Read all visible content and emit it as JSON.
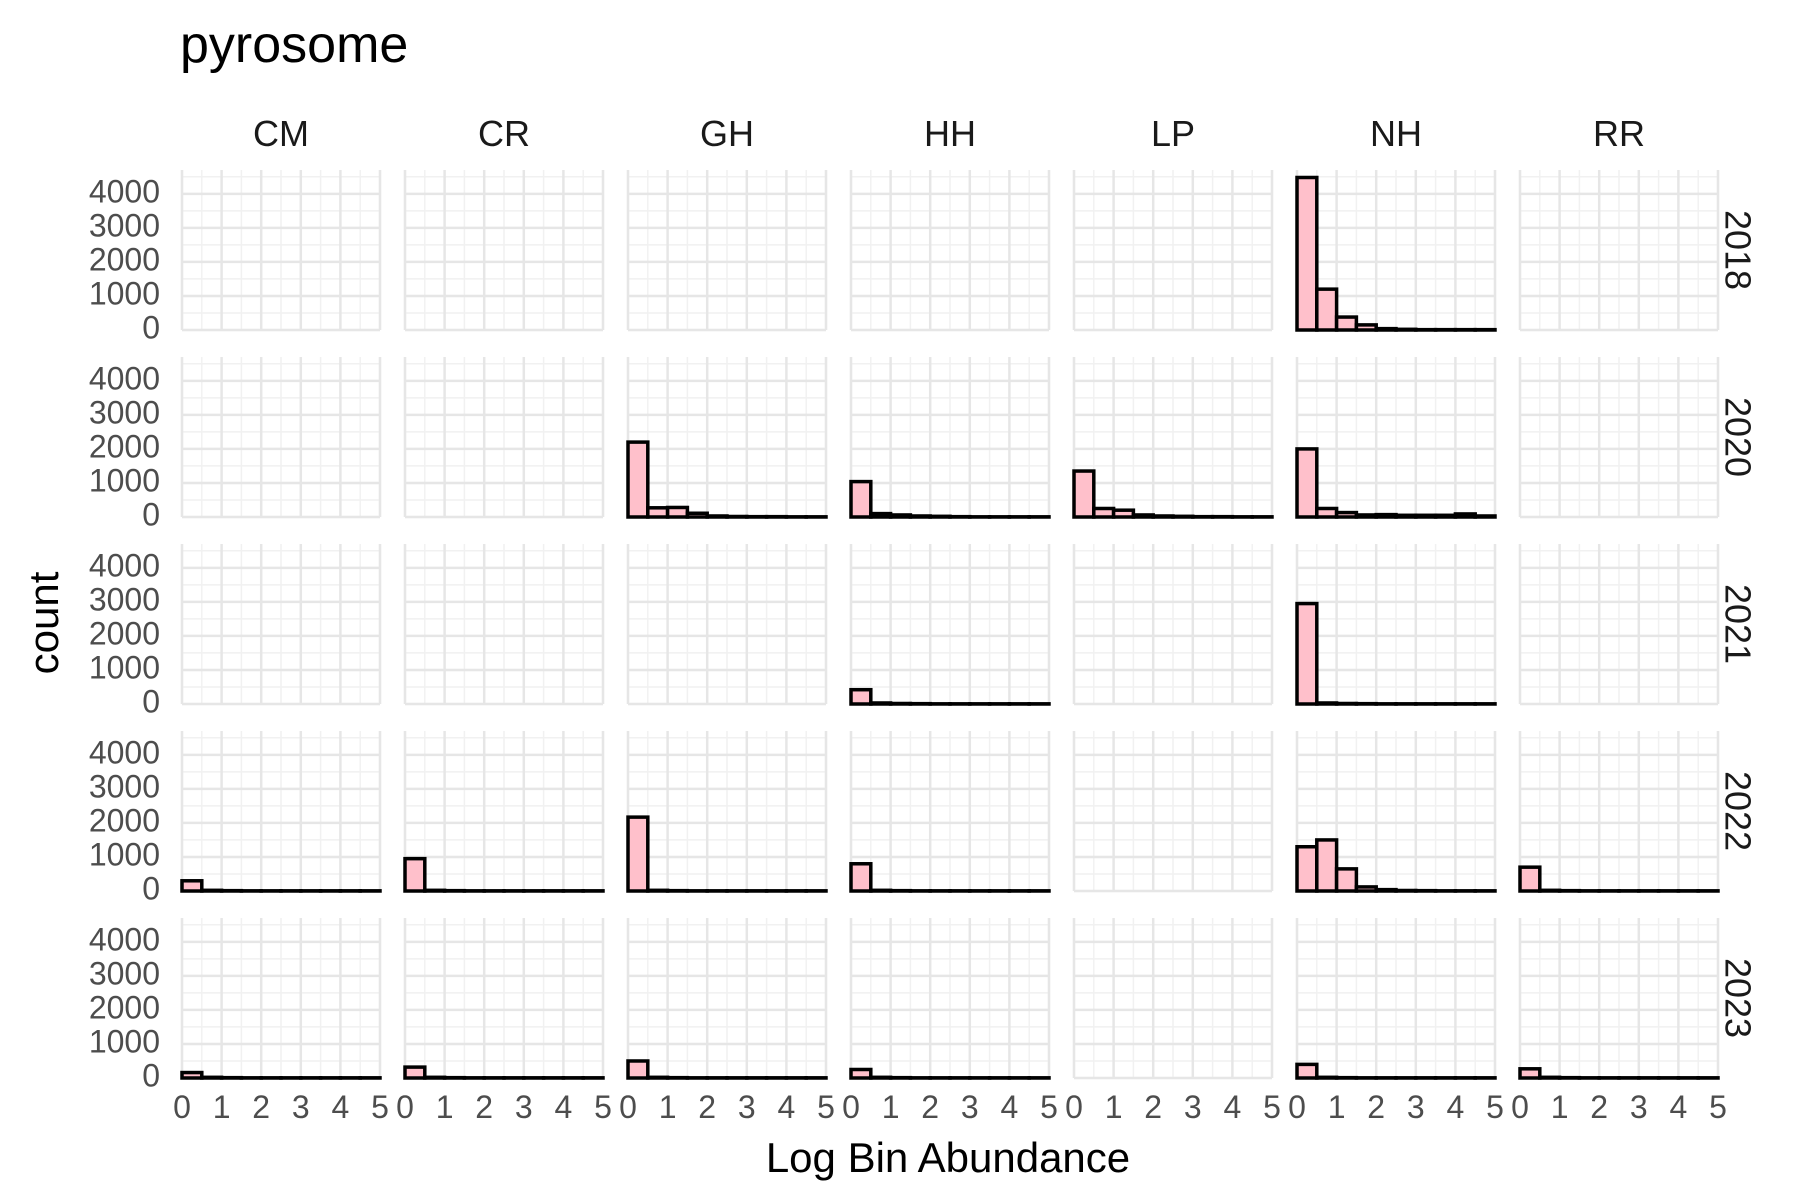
{
  "chart_data": {
    "type": "histogram-facets",
    "title": "pyrosome",
    "xlabel": "Log Bin Abundance",
    "ylabel": "count",
    "columns": [
      "CM",
      "CR",
      "GH",
      "HH",
      "LP",
      "NH",
      "RR"
    ],
    "rows": [
      "2018",
      "2020",
      "2021",
      "2022",
      "2023"
    ],
    "xlim": [
      0,
      5
    ],
    "ylim": [
      0,
      4700
    ],
    "x_ticks": [
      "0",
      "1",
      "2",
      "3",
      "4",
      "5"
    ],
    "y_ticks": [
      "0",
      "1000",
      "2000",
      "3000",
      "4000"
    ],
    "bin_width": 0.5,
    "bin_starts": [
      0,
      0.5,
      1,
      1.5,
      2,
      2.5,
      3,
      3.5,
      4,
      4.5
    ],
    "fill_color": "#FFC0CB",
    "outline_color": "#000000",
    "grid": true,
    "panels": [
      {
        "row": "2018",
        "col": "CM",
        "counts": null
      },
      {
        "row": "2018",
        "col": "CR",
        "counts": null
      },
      {
        "row": "2018",
        "col": "GH",
        "counts": null
      },
      {
        "row": "2018",
        "col": "HH",
        "counts": null
      },
      {
        "row": "2018",
        "col": "LP",
        "counts": null
      },
      {
        "row": "2018",
        "col": "NH",
        "counts": [
          4480,
          1200,
          380,
          150,
          40,
          20,
          10,
          10,
          10,
          10
        ]
      },
      {
        "row": "2018",
        "col": "RR",
        "counts": null
      },
      {
        "row": "2020",
        "col": "CM",
        "counts": null
      },
      {
        "row": "2020",
        "col": "CR",
        "counts": null
      },
      {
        "row": "2020",
        "col": "GH",
        "counts": [
          2200,
          270,
          280,
          110,
          30,
          15,
          10,
          10,
          5,
          5
        ]
      },
      {
        "row": "2020",
        "col": "HH",
        "counts": [
          1040,
          100,
          60,
          30,
          20,
          10,
          5,
          5,
          5,
          5
        ]
      },
      {
        "row": "2020",
        "col": "LP",
        "counts": [
          1350,
          250,
          200,
          60,
          30,
          20,
          10,
          10,
          5,
          5
        ]
      },
      {
        "row": "2020",
        "col": "NH",
        "counts": [
          2000,
          250,
          130,
          60,
          70,
          50,
          50,
          50,
          90,
          30
        ]
      },
      {
        "row": "2020",
        "col": "RR",
        "counts": null
      },
      {
        "row": "2021",
        "col": "CM",
        "counts": null
      },
      {
        "row": "2021",
        "col": "CR",
        "counts": null
      },
      {
        "row": "2021",
        "col": "GH",
        "counts": null
      },
      {
        "row": "2021",
        "col": "HH",
        "counts": [
          420,
          30,
          15,
          10,
          5,
          5,
          5,
          5,
          5,
          5
        ]
      },
      {
        "row": "2021",
        "col": "LP",
        "counts": null
      },
      {
        "row": "2021",
        "col": "NH",
        "counts": [
          2950,
          30,
          15,
          10,
          5,
          5,
          5,
          5,
          5,
          5
        ]
      },
      {
        "row": "2021",
        "col": "RR",
        "counts": null
      },
      {
        "row": "2022",
        "col": "CM",
        "counts": [
          300,
          20,
          10,
          5,
          5,
          5,
          5,
          5,
          5,
          5
        ]
      },
      {
        "row": "2022",
        "col": "CR",
        "counts": [
          950,
          20,
          10,
          5,
          5,
          5,
          5,
          5,
          5,
          5
        ]
      },
      {
        "row": "2022",
        "col": "GH",
        "counts": [
          2170,
          20,
          10,
          5,
          5,
          5,
          5,
          5,
          5,
          5
        ]
      },
      {
        "row": "2022",
        "col": "HH",
        "counts": [
          800,
          20,
          10,
          5,
          5,
          5,
          5,
          5,
          5,
          5
        ]
      },
      {
        "row": "2022",
        "col": "LP",
        "counts": null
      },
      {
        "row": "2022",
        "col": "NH",
        "counts": [
          1300,
          1500,
          650,
          120,
          40,
          15,
          10,
          5,
          5,
          5
        ]
      },
      {
        "row": "2022",
        "col": "RR",
        "counts": [
          700,
          20,
          10,
          5,
          5,
          5,
          5,
          5,
          5,
          5
        ]
      },
      {
        "row": "2023",
        "col": "CM",
        "counts": [
          160,
          20,
          10,
          5,
          5,
          5,
          5,
          5,
          5,
          5
        ]
      },
      {
        "row": "2023",
        "col": "CR",
        "counts": [
          320,
          20,
          10,
          5,
          5,
          5,
          5,
          5,
          5,
          5
        ]
      },
      {
        "row": "2023",
        "col": "GH",
        "counts": [
          500,
          20,
          10,
          5,
          5,
          5,
          5,
          5,
          5,
          5
        ]
      },
      {
        "row": "2023",
        "col": "HH",
        "counts": [
          250,
          20,
          10,
          5,
          5,
          5,
          5,
          5,
          5,
          5
        ]
      },
      {
        "row": "2023",
        "col": "LP",
        "counts": null
      },
      {
        "row": "2023",
        "col": "NH",
        "counts": [
          400,
          20,
          10,
          5,
          5,
          5,
          5,
          5,
          5,
          5
        ]
      },
      {
        "row": "2023",
        "col": "RR",
        "counts": [
          270,
          20,
          10,
          5,
          5,
          5,
          5,
          5,
          5,
          5
        ]
      }
    ]
  }
}
